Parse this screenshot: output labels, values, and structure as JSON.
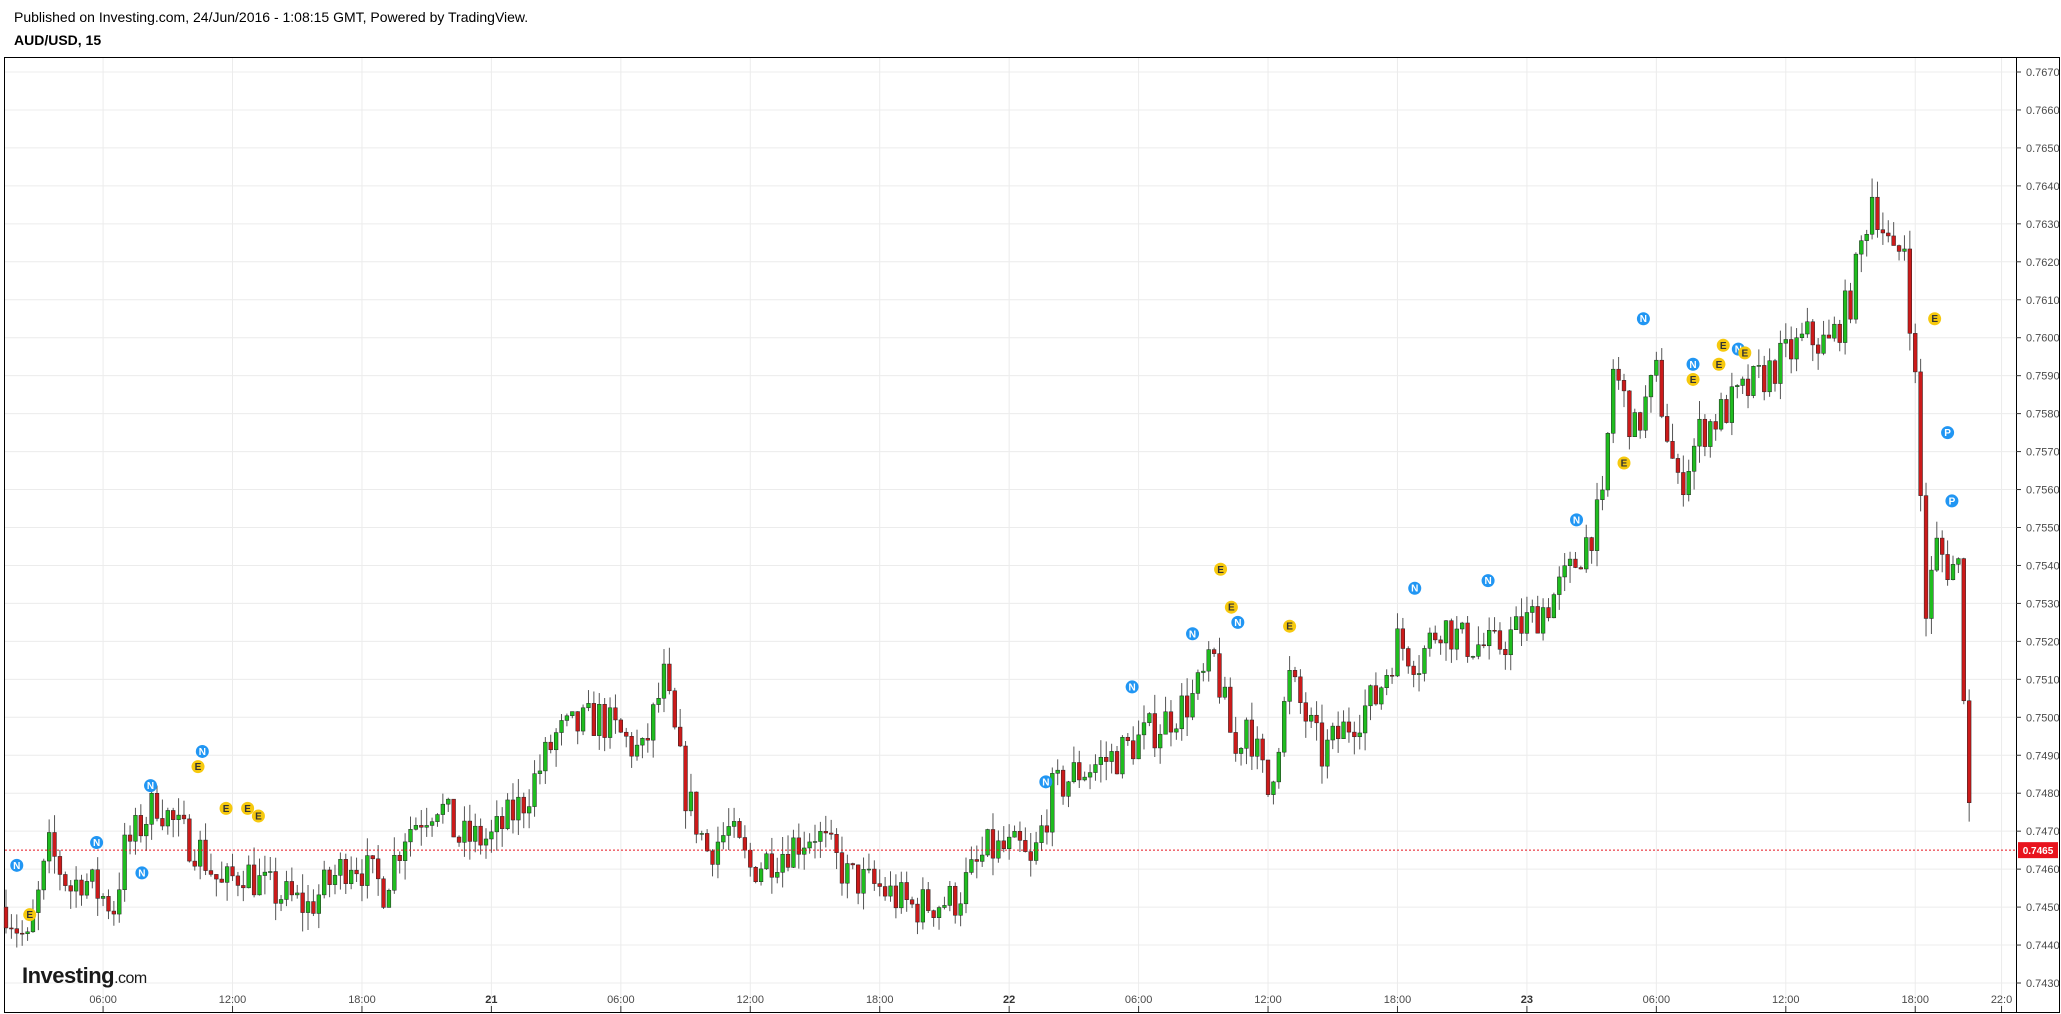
{
  "header": {
    "published": "Published on Investing.com, 24/Jun/2016 - 1:08:15 GMT, Powered by TradingView.",
    "symbol": "AUD/USD, 15"
  },
  "logo": {
    "main": "Investing",
    "suffix": ".com"
  },
  "colors": {
    "up": "#1fbd1f",
    "down": "#cc1a1a",
    "last_price_line": "#e8131d",
    "grid": "#ececec",
    "marker_n": "#2196f3",
    "marker_e": "#f6c90e"
  },
  "chart_data": {
    "type": "candlestick",
    "symbol": "AUD/USD",
    "interval": "15",
    "last_price": 0.7465,
    "last_price_label": "0.7465",
    "ylim": [
      0.7425,
      0.7675
    ],
    "yticks": [
      "0.7430",
      "0.7440",
      "0.7450",
      "0.7460",
      "0.7470",
      "0.7480",
      "0.7490",
      "0.7500",
      "0.7510",
      "0.7520",
      "0.7530",
      "0.7540",
      "0.7550",
      "0.7560",
      "0.7570",
      "0.7580",
      "0.7590",
      "0.7600",
      "0.7610",
      "0.7620",
      "0.7630",
      "0.7640",
      "0.7650",
      "0.7660",
      "0.7670"
    ],
    "xticks": [
      {
        "label": "06:00",
        "hours": 6,
        "day": false
      },
      {
        "label": "12:00",
        "hours": 12,
        "day": false
      },
      {
        "label": "18:00",
        "hours": 18,
        "day": false
      },
      {
        "label": "21",
        "hours": 24,
        "day": true
      },
      {
        "label": "06:00",
        "hours": 30,
        "day": false
      },
      {
        "label": "12:00",
        "hours": 36,
        "day": false
      },
      {
        "label": "18:00",
        "hours": 42,
        "day": false
      },
      {
        "label": "22",
        "hours": 48,
        "day": true
      },
      {
        "label": "06:00",
        "hours": 54,
        "day": false
      },
      {
        "label": "12:00",
        "hours": 60,
        "day": false
      },
      {
        "label": "18:00",
        "hours": 66,
        "day": false
      },
      {
        "label": "23",
        "hours": 72,
        "day": true
      },
      {
        "label": "06:00",
        "hours": 78,
        "day": false
      },
      {
        "label": "12:00",
        "hours": 84,
        "day": false
      },
      {
        "label": "18:00",
        "hours": 90,
        "day": false
      },
      {
        "label": "22:0",
        "hours": 94,
        "day": false
      }
    ],
    "xlim_hours": [
      1.5,
      94.3
    ],
    "path": [
      [
        1.5,
        0.745
      ],
      [
        2.5,
        0.744
      ],
      [
        3.5,
        0.7465
      ],
      [
        4.5,
        0.7455
      ],
      [
        5.0,
        0.7458
      ],
      [
        6.5,
        0.745
      ],
      [
        7.0,
        0.7465
      ],
      [
        8.5,
        0.7478
      ],
      [
        9.5,
        0.747
      ],
      [
        10.5,
        0.7465
      ],
      [
        11.5,
        0.7455
      ],
      [
        12.5,
        0.746
      ],
      [
        13.5,
        0.7455
      ],
      [
        15.5,
        0.745
      ],
      [
        17.5,
        0.7463
      ],
      [
        19.0,
        0.7455
      ],
      [
        20.0,
        0.747
      ],
      [
        21.5,
        0.7478
      ],
      [
        22.5,
        0.7468
      ],
      [
        24.0,
        0.7468
      ],
      [
        25.5,
        0.7478
      ],
      [
        27.0,
        0.7495
      ],
      [
        29.0,
        0.75
      ],
      [
        30.0,
        0.7495
      ],
      [
        31.0,
        0.749
      ],
      [
        32.0,
        0.751
      ],
      [
        33.0,
        0.748
      ],
      [
        34.0,
        0.7465
      ],
      [
        35.0,
        0.747
      ],
      [
        36.0,
        0.746
      ],
      [
        37.5,
        0.7465
      ],
      [
        39.0,
        0.747
      ],
      [
        40.5,
        0.7458
      ],
      [
        42.0,
        0.7455
      ],
      [
        43.5,
        0.745
      ],
      [
        45.5,
        0.7452
      ],
      [
        47.0,
        0.7465
      ],
      [
        48.5,
        0.7465
      ],
      [
        49.0,
        0.746
      ],
      [
        50.0,
        0.748
      ],
      [
        51.0,
        0.7485
      ],
      [
        53.0,
        0.749
      ],
      [
        55.0,
        0.7498
      ],
      [
        56.5,
        0.7505
      ],
      [
        57.5,
        0.7515
      ],
      [
        58.5,
        0.749
      ],
      [
        59.0,
        0.75
      ],
      [
        60.0,
        0.748
      ],
      [
        61.0,
        0.751
      ],
      [
        62.5,
        0.749
      ],
      [
        64.0,
        0.75
      ],
      [
        65.0,
        0.7505
      ],
      [
        66.0,
        0.752
      ],
      [
        67.0,
        0.7515
      ],
      [
        68.0,
        0.7525
      ],
      [
        69.0,
        0.752
      ],
      [
        70.5,
        0.7518
      ],
      [
        72.0,
        0.7525
      ],
      [
        73.0,
        0.753
      ],
      [
        74.0,
        0.7538
      ],
      [
        75.5,
        0.7555
      ],
      [
        76.0,
        0.7592
      ],
      [
        77.0,
        0.7575
      ],
      [
        78.0,
        0.759
      ],
      [
        79.0,
        0.756
      ],
      [
        80.0,
        0.7575
      ],
      [
        81.0,
        0.758
      ],
      [
        82.0,
        0.7585
      ],
      [
        83.0,
        0.759
      ],
      [
        84.0,
        0.7595
      ],
      [
        85.0,
        0.76
      ],
      [
        86.0,
        0.7598
      ],
      [
        87.0,
        0.761
      ],
      [
        88.0,
        0.7638
      ],
      [
        89.0,
        0.762
      ],
      [
        89.5,
        0.7625
      ],
      [
        90.0,
        0.7588
      ],
      [
        90.5,
        0.7528
      ],
      [
        91.0,
        0.7545
      ],
      [
        91.5,
        0.754
      ],
      [
        92.0,
        0.754
      ],
      [
        92.6,
        0.7465
      ]
    ],
    "events": [
      {
        "type": "N",
        "hours": 2.0,
        "price": 0.7461
      },
      {
        "type": "E",
        "hours": 2.6,
        "price": 0.7448
      },
      {
        "type": "N",
        "hours": 5.7,
        "price": 0.7467
      },
      {
        "type": "N",
        "hours": 7.8,
        "price": 0.7459
      },
      {
        "type": "N",
        "hours": 8.2,
        "price": 0.7482
      },
      {
        "type": "N",
        "hours": 10.6,
        "price": 0.7491
      },
      {
        "type": "E",
        "hours": 10.4,
        "price": 0.7487
      },
      {
        "type": "E",
        "hours": 11.7,
        "price": 0.7476
      },
      {
        "type": "E",
        "hours": 12.7,
        "price": 0.7476
      },
      {
        "type": "E",
        "hours": 13.2,
        "price": 0.7474
      },
      {
        "type": "N",
        "hours": 49.7,
        "price": 0.7483
      },
      {
        "type": "N",
        "hours": 53.7,
        "price": 0.7508
      },
      {
        "type": "N",
        "hours": 56.5,
        "price": 0.7522
      },
      {
        "type": "E",
        "hours": 57.8,
        "price": 0.7539
      },
      {
        "type": "E",
        "hours": 58.3,
        "price": 0.7529
      },
      {
        "type": "N",
        "hours": 58.6,
        "price": 0.7525
      },
      {
        "type": "E",
        "hours": 61.0,
        "price": 0.7524
      },
      {
        "type": "N",
        "hours": 66.8,
        "price": 0.7534
      },
      {
        "type": "N",
        "hours": 70.2,
        "price": 0.7536
      },
      {
        "type": "N",
        "hours": 74.3,
        "price": 0.7552
      },
      {
        "type": "E",
        "hours": 76.5,
        "price": 0.7567
      },
      {
        "type": "N",
        "hours": 77.4,
        "price": 0.7605
      },
      {
        "type": "N",
        "hours": 79.7,
        "price": 0.7593
      },
      {
        "type": "E",
        "hours": 79.7,
        "price": 0.7589
      },
      {
        "type": "E",
        "hours": 80.9,
        "price": 0.7593
      },
      {
        "type": "E",
        "hours": 81.1,
        "price": 0.7598
      },
      {
        "type": "N",
        "hours": 81.8,
        "price": 0.7597
      },
      {
        "type": "E",
        "hours": 82.1,
        "price": 0.7596
      },
      {
        "type": "E",
        "hours": 90.9,
        "price": 0.7605
      },
      {
        "type": "P",
        "hours": 91.5,
        "price": 0.7575
      },
      {
        "type": "P",
        "hours": 91.7,
        "price": 0.7557
      }
    ]
  }
}
